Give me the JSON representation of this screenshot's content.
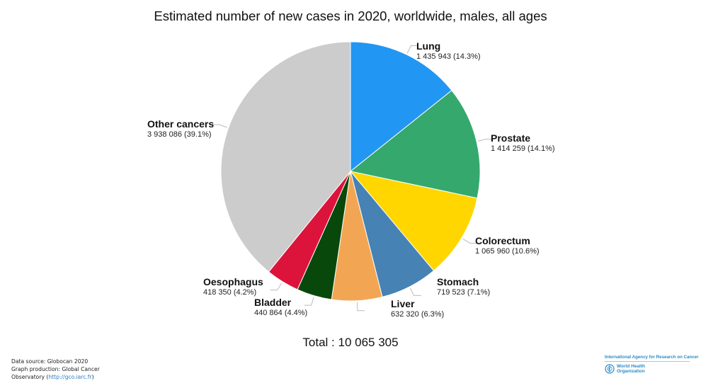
{
  "chart_data": {
    "type": "pie",
    "title": "Estimated number of new cases in 2020, worldwide, males, all ages",
    "total_label": "Total : 10 065 305",
    "total": 10065305,
    "start_angle_deg": 0,
    "direction": "clockwise",
    "slices": [
      {
        "name": "Lung",
        "value": 1435943,
        "value_label": "1 435 943 (14.3%)",
        "percent": 14.3,
        "color": "#2196f3"
      },
      {
        "name": "Prostate",
        "value": 1414259,
        "value_label": "1 414 259 (14.1%)",
        "percent": 14.1,
        "color": "#35a86e"
      },
      {
        "name": "Colorectum",
        "value": 1065960,
        "value_label": "1 065 960 (10.6%)",
        "percent": 10.6,
        "color": "#ffd600"
      },
      {
        "name": "Stomach",
        "value": 719523,
        "value_label": "719 523 (7.1%)",
        "percent": 7.1,
        "color": "#4682b4"
      },
      {
        "name": "Liver",
        "value": 632320,
        "value_label": "632 320 (6.3%)",
        "percent": 6.3,
        "color": "#f2a654"
      },
      {
        "name": "Bladder",
        "value": 440864,
        "value_label": "440 864 (4.4%)",
        "percent": 4.4,
        "color": "#08490b"
      },
      {
        "name": "Oesophagus",
        "value": 418350,
        "value_label": "418 350 (4.2%)",
        "percent": 4.2,
        "color": "#dc143c"
      },
      {
        "name": "Other cancers",
        "value": 3938086,
        "value_label": "3 938 086 (39.1%)",
        "percent": 39.1,
        "color": "#cccccc"
      }
    ],
    "legend": "none (labels placed beside slices)"
  },
  "footer": {
    "line1": "Data source: Globocan 2020",
    "line2": "Graph production: Global Cancer",
    "line3_prefix": "Observatory (",
    "link": "http://gco.iarc.fr",
    "line3_suffix": ")"
  },
  "logos": {
    "iarc": "International Agency for Research on Cancer",
    "who_line1": "World Health",
    "who_line2": "Organization"
  }
}
